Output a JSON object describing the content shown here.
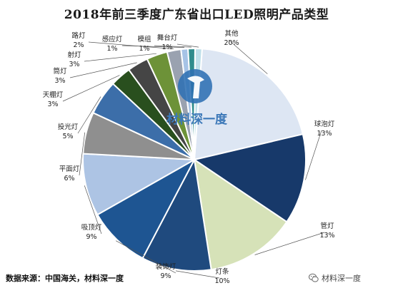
{
  "chart_data": {
    "type": "pie",
    "title": "2018年前三季度广东省出口LED照明产品类型",
    "slices": [
      {
        "name": "其他",
        "label": "20%",
        "value": 20,
        "color": "#dde6f3"
      },
      {
        "name": "球泡灯",
        "label": "13%",
        "value": 13,
        "color": "#17396a"
      },
      {
        "name": "管灯",
        "label": "13%",
        "value": 13,
        "color": "#d6e2b8"
      },
      {
        "name": "灯条",
        "label": "10%",
        "value": 10,
        "color": "#1f4a7e"
      },
      {
        "name": "装饰灯",
        "label": "9%",
        "value": 9,
        "color": "#1e5592"
      },
      {
        "name": "吸顶灯",
        "label": "9%",
        "value": 9,
        "color": "#adc4e4"
      },
      {
        "name": "平面灯",
        "label": "6%",
        "value": 6,
        "color": "#8f8f8f"
      },
      {
        "name": "投光灯",
        "label": "5%",
        "value": 5,
        "color": "#3c6ea9"
      },
      {
        "name": "天棚灯",
        "label": "3%",
        "value": 3,
        "color": "#294f1e"
      },
      {
        "name": "筒灯",
        "label": "3%",
        "value": 3,
        "color": "#454545"
      },
      {
        "name": "射灯",
        "label": "3%",
        "value": 3,
        "color": "#6d9238"
      },
      {
        "name": "路灯",
        "label": "2%",
        "value": 2,
        "color": "#9aa2b0"
      },
      {
        "name": "感应灯",
        "label": "1%",
        "value": 1,
        "color": "#a6c3e6"
      },
      {
        "name": "模组",
        "label": "1%",
        "value": 1,
        "color": "#2f8c8c"
      },
      {
        "name": "舞台灯",
        "label": "1%",
        "value": 1,
        "color": "#bfe0ea"
      }
    ]
  },
  "watermark": {
    "text": "材料深一度",
    "color": "#2d6fb3"
  },
  "source": "数据来源：中国海关，材料深一度",
  "credit": {
    "text": "材料深一度",
    "icon": "wechat-icon"
  }
}
